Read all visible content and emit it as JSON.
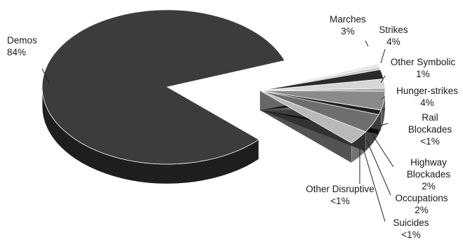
{
  "chart_data": {
    "type": "pie",
    "title": "",
    "slices": [
      {
        "label_lines": [
          "Demos",
          "84%"
        ],
        "value": 84,
        "display": "84%",
        "color": "#3c3c3c"
      },
      {
        "label_lines": [
          "Marches",
          "3%"
        ],
        "value": 3,
        "display": "3%",
        "color": "#b9b9b9"
      },
      {
        "label_lines": [
          "Strikes",
          "4%"
        ],
        "value": 4,
        "display": "4%",
        "color": "#6e6e6e"
      },
      {
        "label_lines": [
          "Other Symbolic",
          "1%"
        ],
        "value": 1,
        "display": "1%",
        "color": "#1f1f1f"
      },
      {
        "label_lines": [
          "Hunger-strikes",
          "4%"
        ],
        "value": 4,
        "display": "4%",
        "color": "#8a8a8a"
      },
      {
        "label_lines": [
          "Rail",
          "Blockades",
          "<1%"
        ],
        "value": 0.6,
        "display": "<1%",
        "color": "#a3a3a3"
      },
      {
        "label_lines": [
          "Highway",
          "Blockades",
          "2%"
        ],
        "value": 2,
        "display": "2%",
        "color": "#d6d6d6"
      },
      {
        "label_lines": [
          "Occupations",
          "2%"
        ],
        "value": 2,
        "display": "2%",
        "color": "#2a2a2a"
      },
      {
        "label_lines": [
          "Suicides",
          "<1%"
        ],
        "value": 0.6,
        "display": "<1%",
        "color": "#c8c8c8"
      },
      {
        "label_lines": [
          "Other Disruptive",
          "<1%"
        ],
        "value": 0.6,
        "display": "<1%",
        "color": "#e4e4e4"
      }
    ],
    "exploded": "all slices except Demos pulled out to the right",
    "style": "3d-tilted"
  }
}
